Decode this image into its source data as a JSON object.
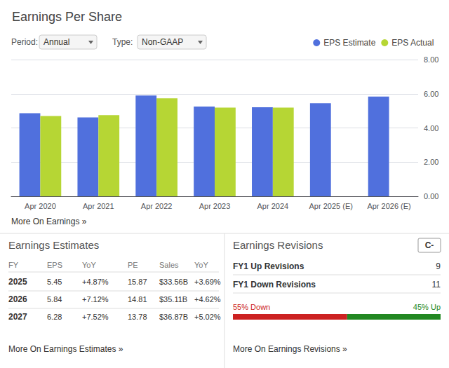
{
  "chart_data": [
    {
      "type": "bar",
      "title": "Earnings Per Share",
      "categories": [
        "Apr 2020",
        "Apr 2021",
        "Apr 2022",
        "Apr 2023",
        "Apr 2024",
        "Apr 2025 (E)",
        "Apr 2026 (E)"
      ],
      "series": [
        {
          "name": "EPS Estimate",
          "values": [
            4.86,
            4.62,
            5.9,
            5.25,
            5.21,
            5.45,
            5.84
          ]
        },
        {
          "name": "EPS Actual",
          "values": [
            4.7,
            4.75,
            5.73,
            5.19,
            5.19,
            null,
            null
          ]
        }
      ],
      "ylim": [
        0,
        8
      ],
      "yticks": [
        {
          "value": 0,
          "label": "0.00"
        },
        {
          "value": 2,
          "label": "2.00"
        },
        {
          "value": 4,
          "label": "4.00"
        },
        {
          "value": 6,
          "label": "6.00"
        },
        {
          "value": 8,
          "label": "8.00"
        }
      ],
      "grid": true,
      "legend": "upper right",
      "annotations": [
        [
          "Period:",
          "Annual"
        ],
        [
          "Type:",
          "Non-GAAP"
        ],
        [
          "More On Earnings »"
        ],
        [
          "Earnings Estimates"
        ],
        [
          "FY",
          "EPS",
          "YoY",
          "PE",
          "Sales",
          "YoY"
        ],
        [
          "2025",
          "5.45",
          "+4.87%",
          "15.87",
          "$33.56B",
          "+3.69%"
        ],
        [
          "2026",
          "5.84",
          "+7.12%",
          "14.81",
          "$35.11B",
          "+4.62%"
        ],
        [
          "2027",
          "6.28",
          "+7.52%",
          "13.78",
          "$36.87B",
          "+5.02%"
        ],
        [
          "More On Earnings Estimates »"
        ],
        [
          "Earnings Revisions",
          "C-"
        ],
        [
          "FY1 Up Revisions",
          "9"
        ],
        [
          "FY1 Down Revisions",
          "11"
        ],
        [
          "More On Earnings Revisions »"
        ]
      ]
    },
    {
      "type": "bar",
      "orientation": "horizontal",
      "stacked": true,
      "categories": [
        null
      ],
      "series": [
        {
          "color": "#cc2222",
          "values": [
            55
          ],
          "value_labels": [
            "55% Down"
          ]
        },
        {
          "color": "#228822",
          "values": [
            45
          ],
          "value_labels": [
            "45% Up"
          ]
        }
      ],
      "xlim": [
        0,
        100
      ],
      "tick_labels": false,
      "data_labels": true
    }
  ]
}
